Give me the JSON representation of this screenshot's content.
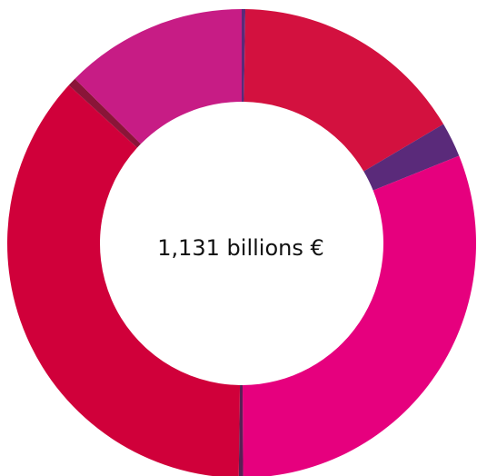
{
  "chart_data": {
    "type": "pie",
    "donut": true,
    "center_label": "1,131 billions €",
    "slices": [
      {
        "value": 0.25,
        "color": "#5a2a7a"
      },
      {
        "value": 16.25,
        "color": "#d3113f"
      },
      {
        "value": 2.4,
        "color": "#5a2a7a"
      },
      {
        "value": 31.0,
        "color": "#e6007e"
      },
      {
        "value": 0.3,
        "color": "#5a1f55"
      },
      {
        "value": 36.6,
        "color": "#d0003a"
      },
      {
        "value": 0.6,
        "color": "#8a1538"
      },
      {
        "value": 12.6,
        "color": "#c71c85"
      }
    ]
  }
}
